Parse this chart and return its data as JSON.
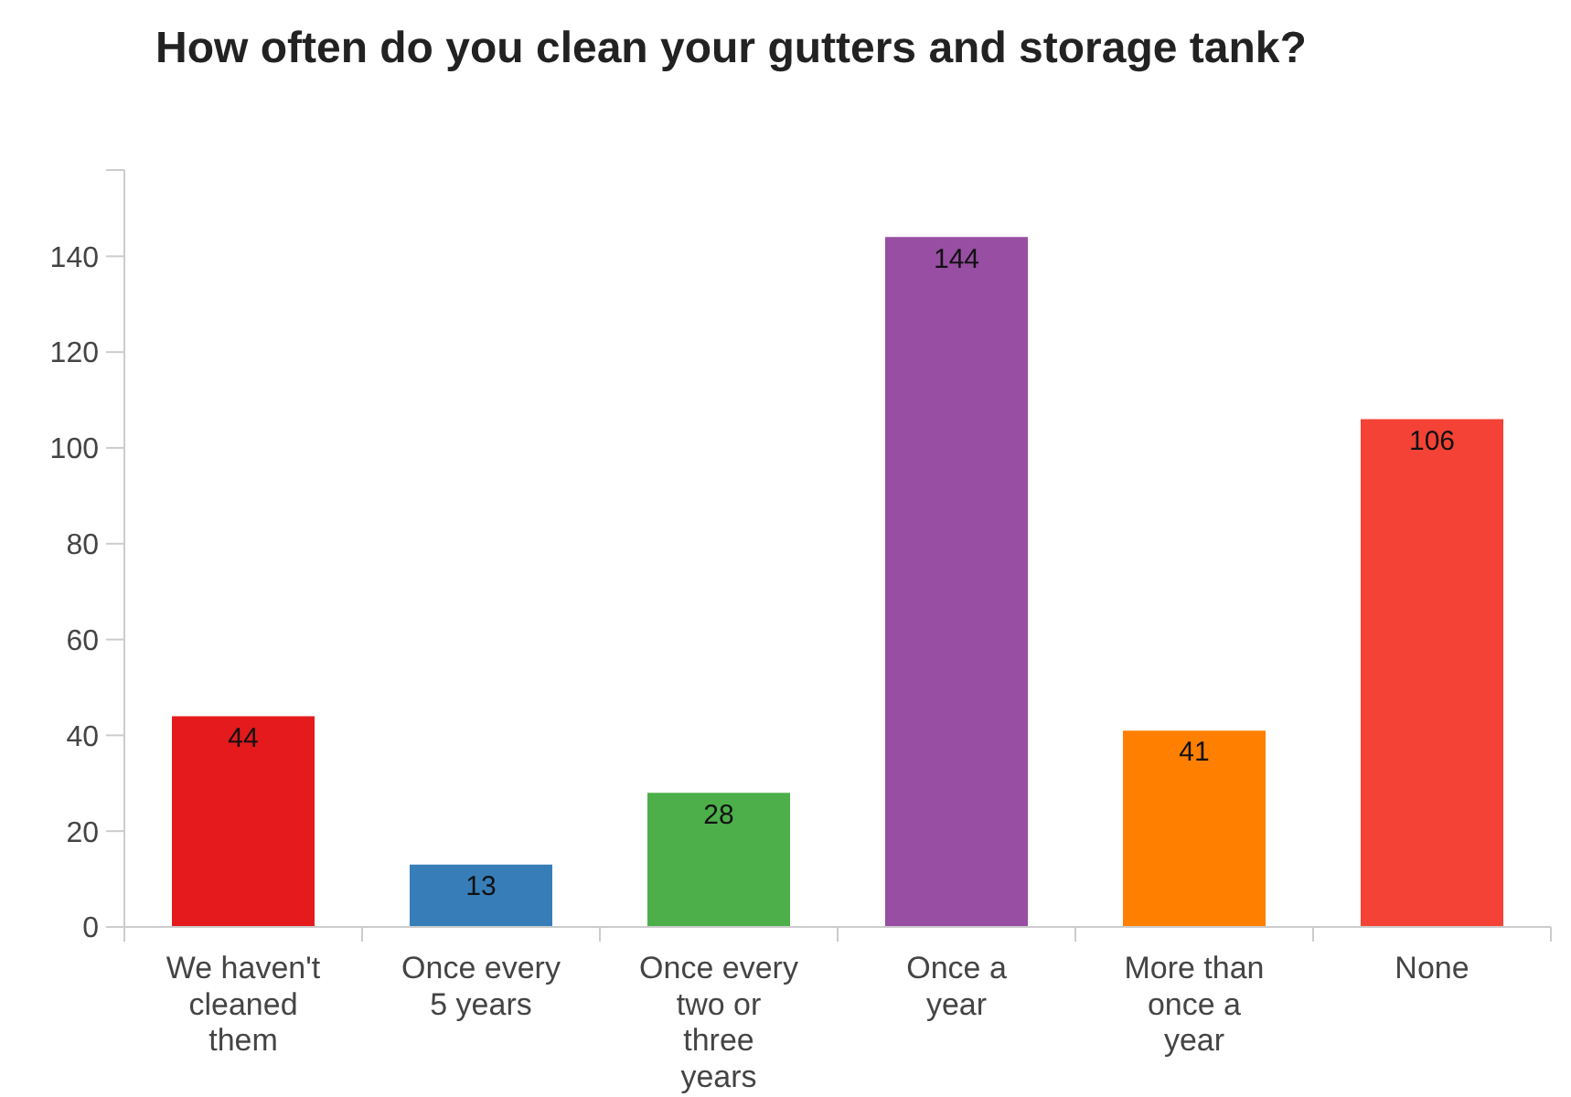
{
  "chart_data": {
    "type": "bar",
    "title": "How often do you clean your gutters and storage tank?",
    "categories": [
      "We haven't cleaned them",
      "Once every 5 years",
      "Once every two or three years",
      "Once a year",
      "More than once a year",
      "None"
    ],
    "values": [
      44,
      13,
      28,
      144,
      41,
      106
    ],
    "colors": [
      "#e41a1c",
      "#377eb8",
      "#4daf4a",
      "#984ea3",
      "#ff7f00",
      "#f44336"
    ],
    "ylim": [
      0,
      158
    ],
    "yticks": [
      0,
      20,
      40,
      60,
      80,
      100,
      120,
      140,
      {
        "value": 158,
        "label": null
      }
    ],
    "data_labels": true
  }
}
